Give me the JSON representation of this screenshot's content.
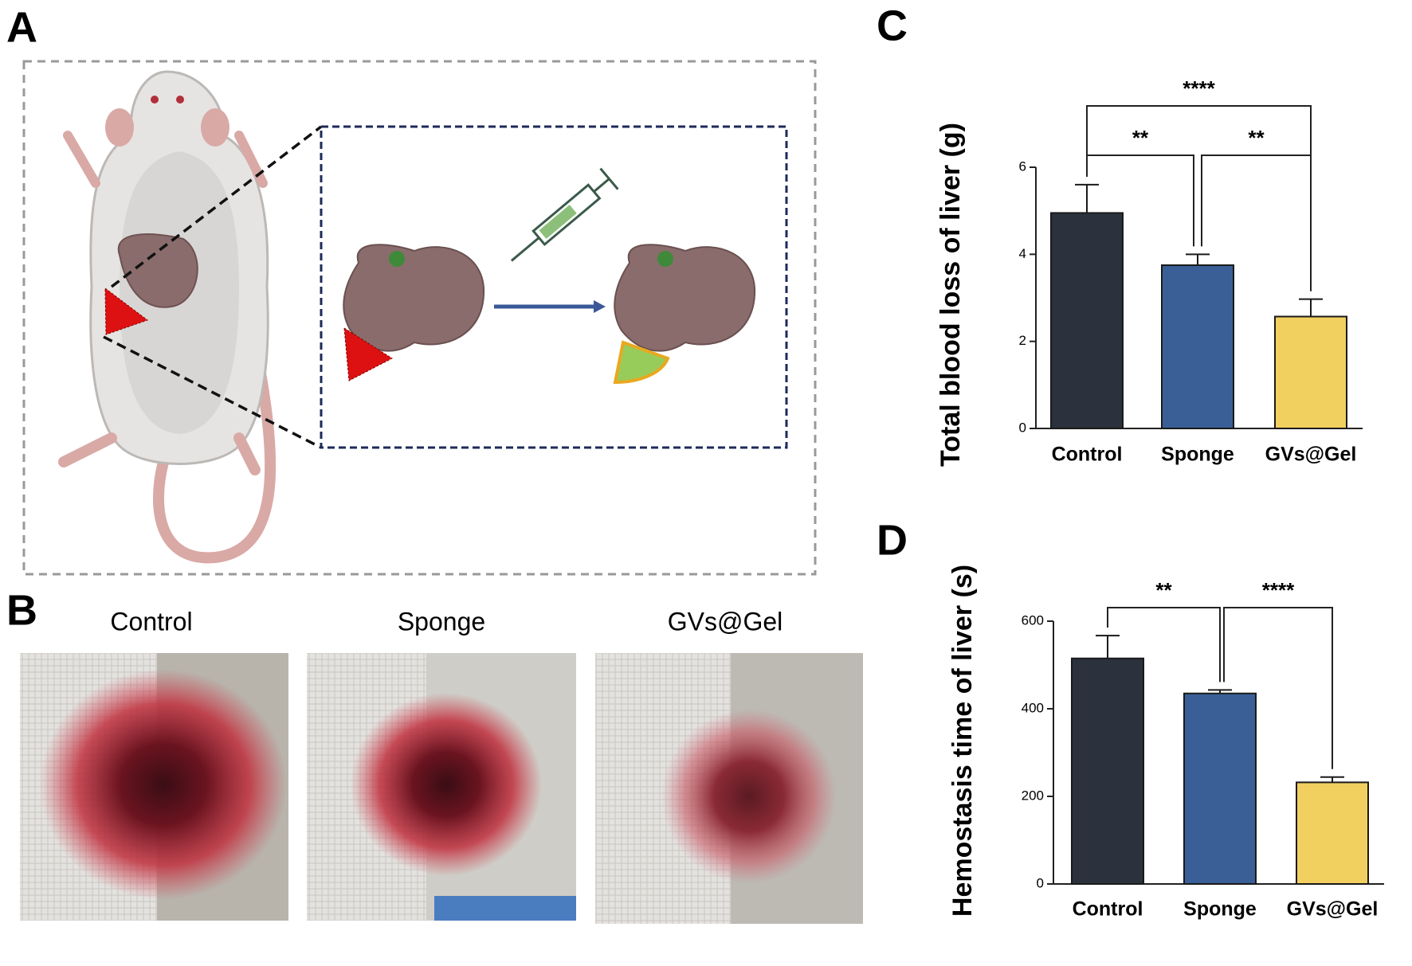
{
  "panels": [
    "A",
    "B",
    "C",
    "D"
  ],
  "photos": [
    "Control",
    "Sponge",
    "GVs@Gel"
  ],
  "chart_data": [
    {
      "type": "bar",
      "y_label": "Total blood loss of liver (g)",
      "categories": [
        "Control",
        "Sponge",
        "GVs@Gel"
      ],
      "values": [
        4.95,
        3.75,
        2.57
      ],
      "errors": [
        0.65,
        0.25,
        0.4
      ],
      "colors": [
        "#2b323d",
        "#3a5f96",
        "#f2d060"
      ],
      "ylim": [
        0,
        6
      ],
      "yticks": [
        0,
        2,
        4,
        6
      ],
      "annotations": [
        "****",
        "**",
        "**"
      ]
    },
    {
      "type": "bar",
      "y_label": "Hemostasis time of liver (s)",
      "categories": [
        "Control",
        "Sponge",
        "GVs@Gel"
      ],
      "values": [
        515,
        435,
        232
      ],
      "errors": [
        52,
        8,
        12
      ],
      "colors": [
        "#2b323d",
        "#3a5f96",
        "#f2d060"
      ],
      "ylim": [
        0,
        600
      ],
      "yticks": [
        0,
        200,
        400,
        600
      ],
      "annotations": [
        "**",
        "****"
      ]
    }
  ]
}
